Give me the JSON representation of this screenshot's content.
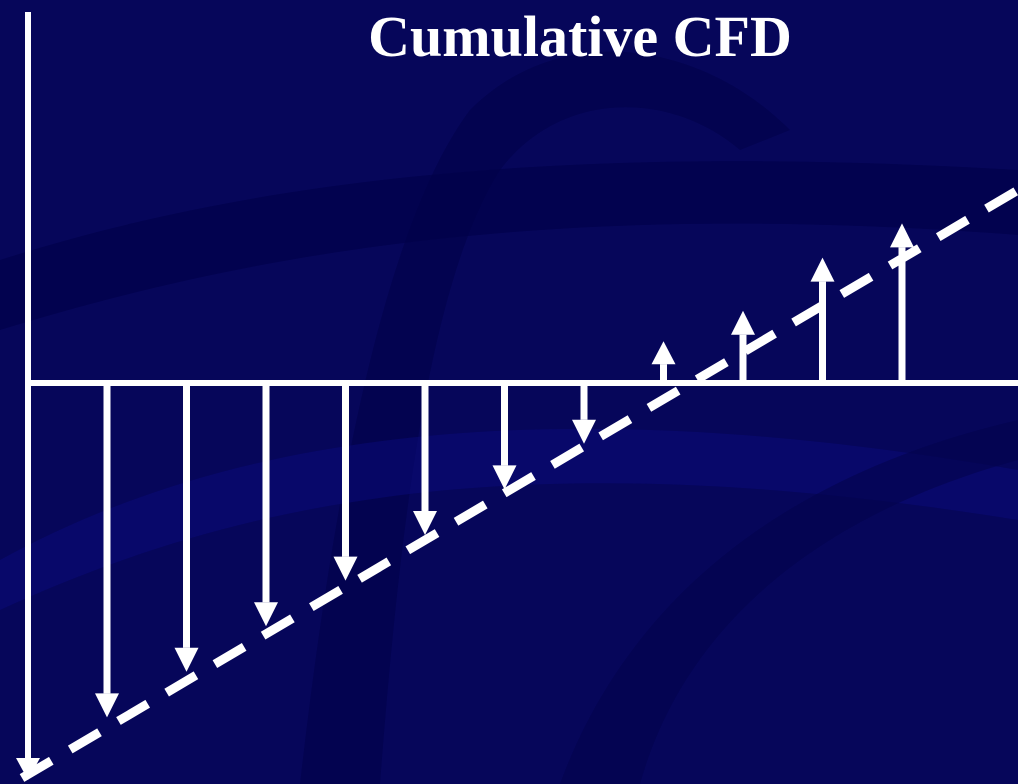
{
  "slide": {
    "title": "Cumulative CFD"
  },
  "diagram_data": {
    "type": "cumulative-cash-flow-diagram",
    "baseline_present": true,
    "trend_line_style": "dashed",
    "arrows": [
      {
        "direction": "down",
        "magnitude": 0.88
      },
      {
        "direction": "down",
        "magnitude": 0.76
      },
      {
        "direction": "down",
        "magnitude": 0.64
      },
      {
        "direction": "down",
        "magnitude": 0.52
      },
      {
        "direction": "down",
        "magnitude": 0.4
      },
      {
        "direction": "down",
        "magnitude": 0.28
      },
      {
        "direction": "down",
        "magnitude": 0.16
      },
      {
        "direction": "up",
        "magnitude": 0.11
      },
      {
        "direction": "up",
        "magnitude": 0.19
      },
      {
        "direction": "up",
        "magnitude": 0.33
      },
      {
        "direction": "up",
        "magnitude": 0.42
      }
    ],
    "colors": {
      "background": "#06065a",
      "foreground": "#ffffff"
    }
  }
}
